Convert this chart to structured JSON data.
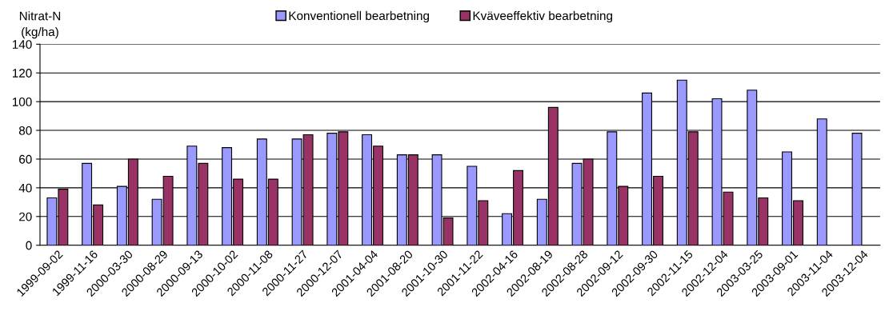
{
  "chart_data": {
    "type": "bar",
    "ylabel": "Nitrat-N\n(kg/ha)",
    "categories": [
      "1999-09-02",
      "1999-11-16",
      "2000-03-30",
      "2000-08-29",
      "2000-09-13",
      "2000-10-02",
      "2000-11-08",
      "2000-11-27",
      "2000-12-07",
      "2001-04-04",
      "2001-08-20",
      "2001-10-30",
      "2001-11-22",
      "2002-04-16",
      "2002-08-19",
      "2002-08-28",
      "2002-09-12",
      "2002-09-30",
      "2002-11-15",
      "2002-12-04",
      "2003-03-25",
      "2003-09-01",
      "2003-11-04",
      "2003-12-04"
    ],
    "series": [
      {
        "name": "Konventionell bearbetning",
        "color": "#9999ff",
        "values": [
          33,
          57,
          41,
          32,
          69,
          68,
          74,
          74,
          78,
          77,
          63,
          63,
          55,
          22,
          32,
          57,
          79,
          106,
          115,
          102,
          108,
          65,
          88,
          78
        ]
      },
      {
        "name": "Kväveeffektiv bearbetning",
        "color": "#993366",
        "values": [
          39,
          28,
          60,
          48,
          57,
          46,
          46,
          77,
          79,
          69,
          63,
          19,
          31,
          52,
          96,
          60,
          41,
          48,
          79,
          37,
          33,
          31,
          null,
          null
        ]
      }
    ],
    "ylim": [
      0,
      140
    ],
    "yticks": [
      0,
      20,
      40,
      60,
      80,
      100,
      120,
      140
    ],
    "grid": "y",
    "legend": "top"
  }
}
